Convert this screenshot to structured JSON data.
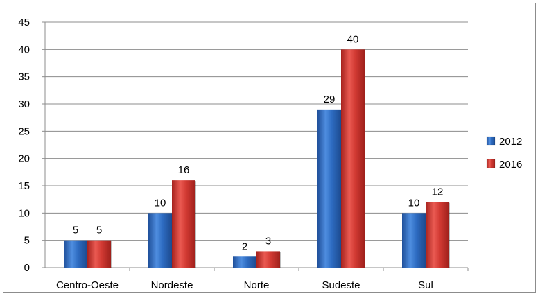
{
  "chart_data": {
    "type": "bar",
    "title": "",
    "xlabel": "",
    "ylabel": "",
    "categories": [
      "Centro-Oeste",
      "Nordeste",
      "Norte",
      "Sudeste",
      "Sul"
    ],
    "series": [
      {
        "name": "2012",
        "values": [
          5,
          10,
          2,
          29,
          10
        ],
        "color": "#2f6fc4"
      },
      {
        "name": "2016",
        "values": [
          5,
          16,
          3,
          40,
          12
        ],
        "color": "#d63a34"
      }
    ],
    "ylim": [
      0,
      45
    ],
    "yticks": [
      0,
      5,
      10,
      15,
      20,
      25,
      30,
      35,
      40,
      45
    ],
    "grid": true,
    "legend_position": "right"
  }
}
